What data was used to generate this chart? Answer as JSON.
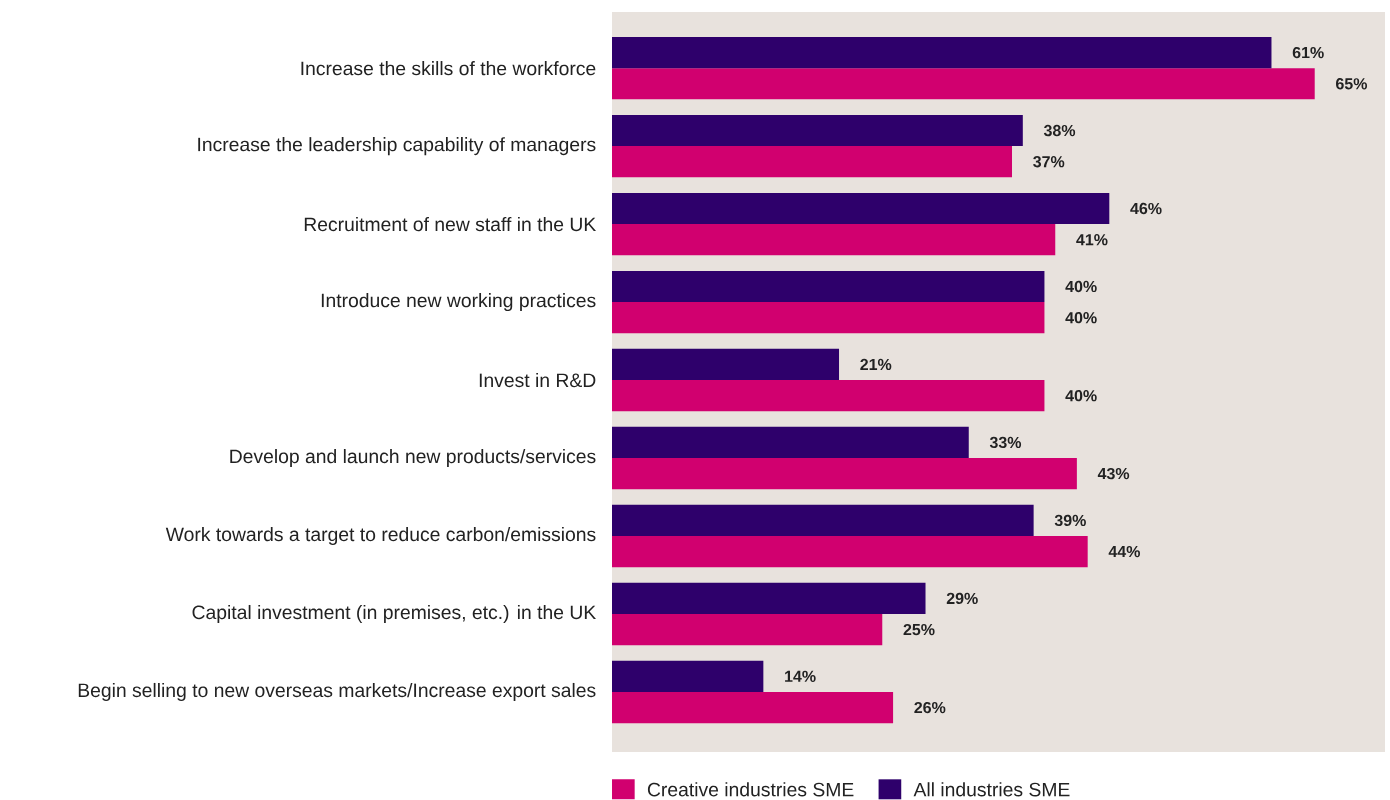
{
  "chart_data": {
    "type": "bar",
    "orientation": "horizontal",
    "categories": [
      "Increase the skills of the workforce",
      "Increase the leadership capability of managers",
      "Recruitment of new staff in the UK",
      "Introduce new working practices",
      "Invest in R&D",
      "Develop and launch new products/services",
      "Work towards a target to reduce carbon/emissions",
      "Capital investment (in premises, etc.) in the UK",
      "Begin selling to new overseas markets/Increase export sales"
    ],
    "series": [
      {
        "name": "Creative industries SME",
        "color": "#d1006f",
        "values": [
          65,
          37,
          41,
          40,
          40,
          43,
          44,
          25,
          26
        ],
        "value_labels": [
          "65%",
          "37%",
          "41%",
          "40%",
          "40%",
          "43%",
          "44%",
          "25%",
          "26%"
        ]
      },
      {
        "name": "All industries SME",
        "color": "#2e006b",
        "values": [
          61,
          38,
          46,
          40,
          21,
          33,
          39,
          29,
          14
        ],
        "value_labels": [
          "61%",
          "38%",
          "46%",
          "40%",
          "21%",
          "33%",
          "39%",
          "29%",
          "14%"
        ]
      }
    ],
    "xlim": [
      0,
      71.5
    ],
    "tick_labels": "y",
    "legend": "bottom",
    "grid": false
  }
}
